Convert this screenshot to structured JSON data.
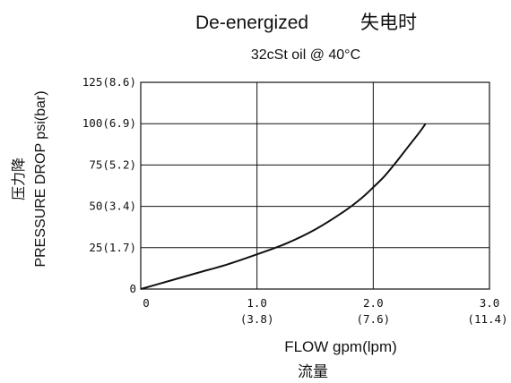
{
  "chart_data": {
    "type": "line",
    "title": "De-energized",
    "title_cjk": "失电时",
    "subtitle": "32cSt oil @ 40°C",
    "xlabel": "FLOW gpm(lpm)",
    "xlabel_cjk": "流量",
    "ylabel": "PRESSURE DROP  psi(bar)",
    "ylabel_cjk": "压力降",
    "xlim": [
      0,
      3.0
    ],
    "ylim": [
      0,
      125
    ],
    "grid": true,
    "x_ticks": [
      {
        "value": 0,
        "label": "0",
        "sublabel": ""
      },
      {
        "value": 1.0,
        "label": "1.0",
        "sublabel": "(3.8)"
      },
      {
        "value": 2.0,
        "label": "2.0",
        "sublabel": "(7.6)"
      },
      {
        "value": 3.0,
        "label": "3.0",
        "sublabel": "(11.4)"
      }
    ],
    "y_ticks": [
      {
        "value": 0,
        "label": "0"
      },
      {
        "value": 25,
        "label": "25(1.7)"
      },
      {
        "value": 50,
        "label": "50(3.4)"
      },
      {
        "value": 75,
        "label": "75(5.2)"
      },
      {
        "value": 100,
        "label": "100(6.9)"
      },
      {
        "value": 125,
        "label": "125(8.6)"
      }
    ],
    "series": [
      {
        "x": [
          0,
          0.25,
          0.5,
          0.75,
          1.0,
          1.25,
          1.5,
          1.75,
          1.9,
          2.0,
          2.1,
          2.2,
          2.3,
          2.4,
          2.45
        ],
        "y": [
          0,
          5,
          10,
          15,
          21,
          27.5,
          36,
          47,
          55,
          61.5,
          68.5,
          77,
          86,
          95,
          100
        ]
      }
    ]
  }
}
